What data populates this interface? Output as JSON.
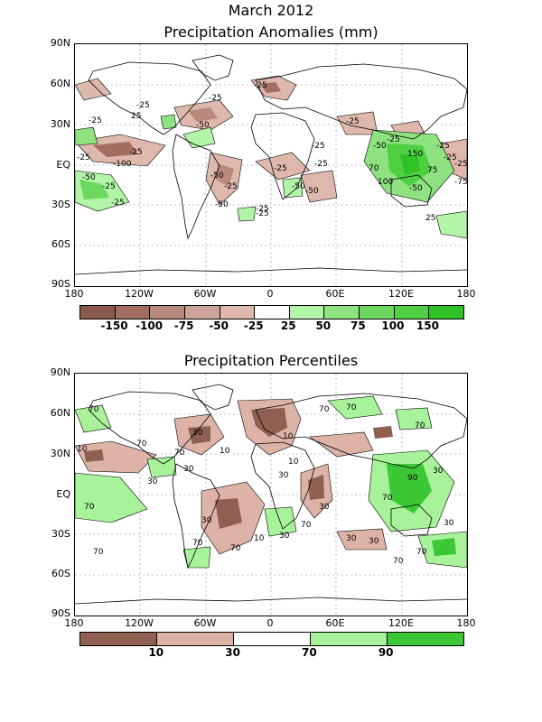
{
  "title": "March 2012",
  "panels": [
    {
      "title": "Precipitation Anomalies (mm)",
      "lat_labels": [
        "90N",
        "60N",
        "30N",
        "EQ",
        "30S",
        "60S",
        "90S"
      ],
      "lon_labels": [
        "180",
        "120W",
        "60W",
        "0",
        "60E",
        "120E",
        "180"
      ],
      "colorbar": {
        "colors": [
          "#8a5a4c",
          "#a36e60",
          "#b98a7c",
          "#cca398",
          "#deb8ac",
          "#ffffff",
          "#b2f5a8",
          "#8ee27f",
          "#6cd85f",
          "#4fd043",
          "#2fc224"
        ],
        "labels": [
          "-150",
          "-100",
          "-75",
          "-50",
          "-25",
          "25",
          "50",
          "75",
          "100",
          "150"
        ]
      },
      "contour_labels": [
        "-25",
        "-25",
        "-25",
        "25",
        "-50",
        "-25",
        "-25",
        "-25",
        "-50",
        "-25",
        "-100",
        "-25",
        "-50",
        "-25",
        "-25",
        "-50",
        "-25",
        "-25",
        "-50",
        "-25",
        "-25",
        "-50",
        "-50",
        "-25",
        "-25",
        "-25",
        "150",
        "-25",
        "70",
        "100",
        "-50",
        "-75",
        "75",
        "-25",
        "25"
      ]
    },
    {
      "title": "Precipitation Percentiles",
      "lat_labels": [
        "90N",
        "60N",
        "30N",
        "EQ",
        "30S",
        "60S",
        "90S"
      ],
      "lon_labels": [
        "180",
        "120W",
        "60W",
        "0",
        "60E",
        "120E",
        "180"
      ],
      "colorbar": {
        "colors": [
          "#8f5f52",
          "#ddb3a7",
          "#ffffff",
          "#a8f29c",
          "#3cc735"
        ],
        "labels": [
          "10",
          "30",
          "70",
          "90"
        ]
      },
      "contour_labels": [
        "70",
        "70",
        "10",
        "30",
        "70",
        "30",
        "30",
        "10",
        "30",
        "10",
        "70",
        "30",
        "70",
        "70",
        "30",
        "70",
        "30",
        "70",
        "70",
        "30",
        "10",
        "30",
        "70",
        "90",
        "30",
        "70",
        "30",
        "70",
        "70",
        "70",
        "10"
      ]
    }
  ]
}
